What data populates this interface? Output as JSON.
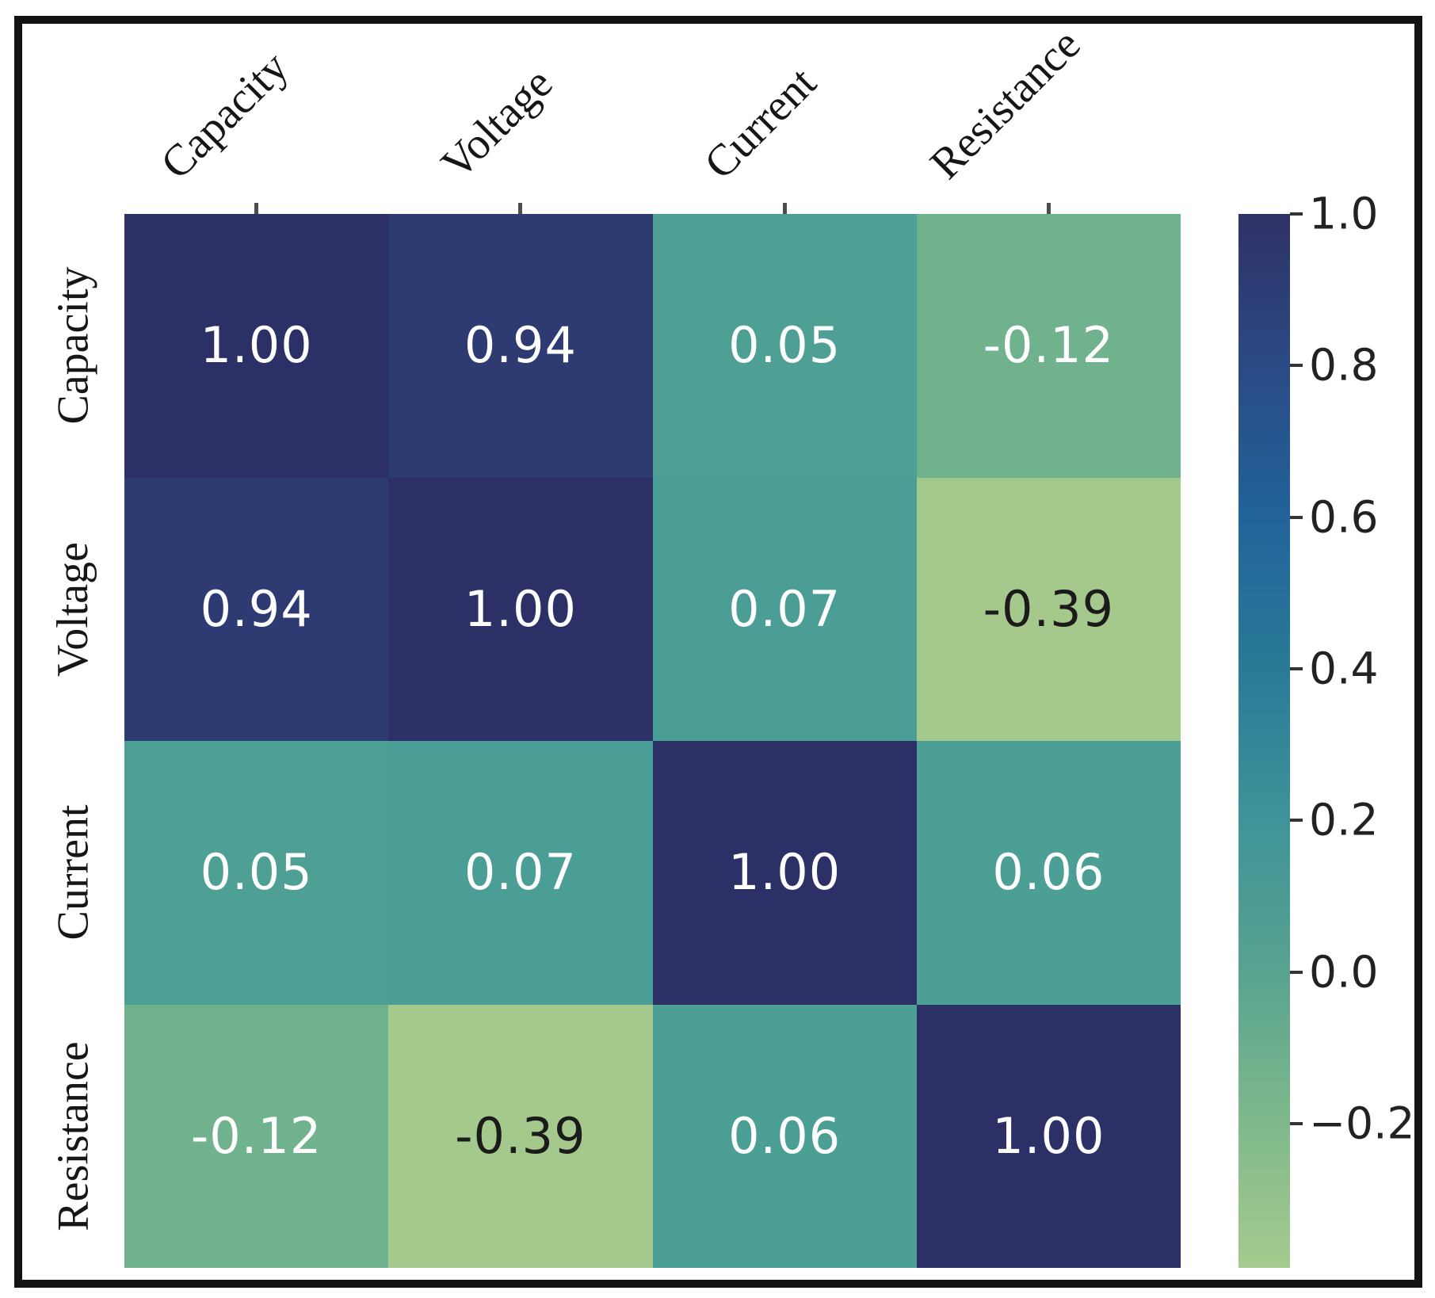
{
  "chart_data": {
    "type": "heatmap",
    "title": "",
    "x_categories": [
      "Capacity",
      "Voltage",
      "Current",
      "Resistance"
    ],
    "y_categories": [
      "Capacity",
      "Voltage",
      "Current",
      "Resistance"
    ],
    "matrix": [
      [
        1.0,
        0.94,
        0.05,
        -0.12
      ],
      [
        0.94,
        1.0,
        0.07,
        -0.39
      ],
      [
        0.05,
        0.07,
        1.0,
        0.06
      ],
      [
        -0.12,
        -0.39,
        0.06,
        1.0
      ]
    ],
    "cell_text": [
      [
        "1.00",
        "0.94",
        "0.05",
        "-0.12"
      ],
      [
        "0.94",
        "1.00",
        "0.07",
        "-0.39"
      ],
      [
        "0.05",
        "0.07",
        "1.00",
        "0.06"
      ],
      [
        "-0.12",
        "-0.39",
        "0.06",
        "1.00"
      ]
    ],
    "cell_colors": [
      [
        "#2d3067",
        "#2e3b73",
        "#4da093",
        "#71b28e"
      ],
      [
        "#2e3b73",
        "#2d3067",
        "#4b9e95",
        "#a5c98c"
      ],
      [
        "#4da093",
        "#4b9e95",
        "#2d3067",
        "#4c9f94"
      ],
      [
        "#71b28e",
        "#a5c98c",
        "#4c9f94",
        "#2d3067"
      ]
    ],
    "cell_text_colors": [
      [
        "#ffffff",
        "#ffffff",
        "#ffffff",
        "#ffffff"
      ],
      [
        "#ffffff",
        "#ffffff",
        "#ffffff",
        "#1b1b1b"
      ],
      [
        "#ffffff",
        "#ffffff",
        "#ffffff",
        "#ffffff"
      ],
      [
        "#ffffff",
        "#1b1b1b",
        "#ffffff",
        "#ffffff"
      ]
    ],
    "grid": false,
    "legend_position": "right",
    "colorbar": {
      "vmin": -0.39,
      "vmax": 1.0,
      "tick_labels": [
        "1.0",
        "0.8",
        "0.6",
        "0.4",
        "0.2",
        "0.0",
        "−0.2"
      ],
      "tick_values": [
        1.0,
        0.8,
        0.6,
        0.4,
        0.2,
        0.0,
        -0.2
      ],
      "gradient_stops": [
        {
          "value": 1.0,
          "color": "#2e3167"
        },
        {
          "value": 0.8,
          "color": "#2b4a84"
        },
        {
          "value": 0.6,
          "color": "#21639b"
        },
        {
          "value": 0.4,
          "color": "#2a7a97"
        },
        {
          "value": 0.2,
          "color": "#3f9399"
        },
        {
          "value": 0.0,
          "color": "#58a38f"
        },
        {
          "value": -0.2,
          "color": "#7fb98c"
        },
        {
          "value": -0.39,
          "color": "#a6cb8d"
        }
      ]
    }
  }
}
